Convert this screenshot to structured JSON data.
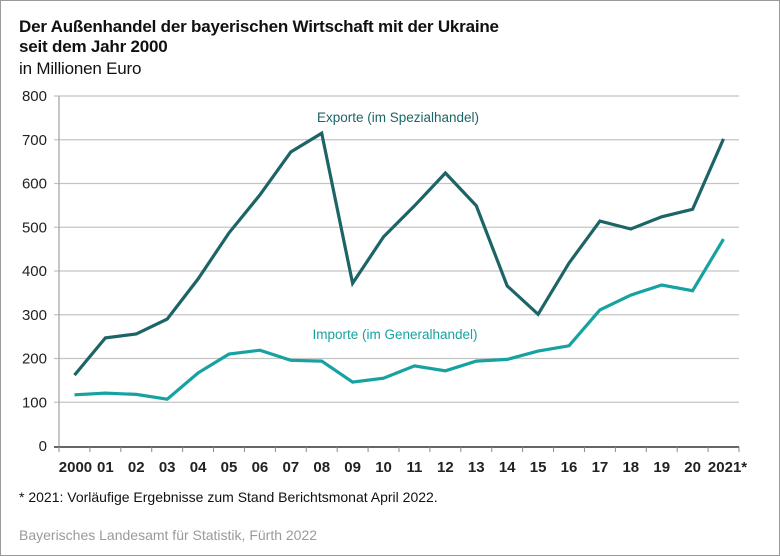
{
  "header": {
    "title_line1": "Der Außenhandel der bayerischen Wirtschaft mit der Ukraine",
    "title_line2": "seit dem Jahr 2000",
    "subtitle": "in Millionen Euro"
  },
  "footer": {
    "footnote": "* 2021: Vorläufige Ergebnisse zum Stand Berichtsmonat April 2022.",
    "source": "Bayerisches Landesamt für Statistik, Fürth 2022"
  },
  "colors": {
    "exports": "#1d6466",
    "imports": "#17a2a2",
    "grid": "#c4c4c4",
    "axis": "#333333"
  },
  "chart_data": {
    "type": "line",
    "title": "Der Außenhandel der bayerischen Wirtschaft mit der Ukraine seit dem Jahr 2000",
    "subtitle": "in Millionen Euro",
    "xlabel": "",
    "ylabel": "",
    "categories": [
      "2000",
      "01",
      "02",
      "03",
      "04",
      "05",
      "06",
      "07",
      "08",
      "09",
      "10",
      "11",
      "12",
      "13",
      "14",
      "15",
      "16",
      "17",
      "18",
      "19",
      "20",
      "2021*"
    ],
    "ylim": [
      0,
      800
    ],
    "yticks": [
      0,
      100,
      200,
      300,
      400,
      500,
      600,
      700,
      800
    ],
    "grid": true,
    "legend": "inline-labels",
    "series": [
      {
        "name": "Exporte (im Spezialhandel)",
        "color": "#1d6466",
        "values": [
          162,
          247,
          256,
          290,
          382,
          487,
          574,
          672,
          715,
          372,
          478,
          549,
          624,
          549,
          366,
          301,
          418,
          514,
          496,
          524,
          541,
          702
        ]
      },
      {
        "name": "Importe (im Generalhandel)",
        "color": "#17a2a2",
        "values": [
          117,
          121,
          118,
          107,
          167,
          210,
          219,
          196,
          194,
          146,
          155,
          183,
          172,
          194,
          198,
          217,
          229,
          311,
          345,
          368,
          355,
          473
        ]
      }
    ],
    "annotations": [
      "Exporte (im Spezialhandel)",
      "Importe (im Generalhandel)"
    ]
  }
}
